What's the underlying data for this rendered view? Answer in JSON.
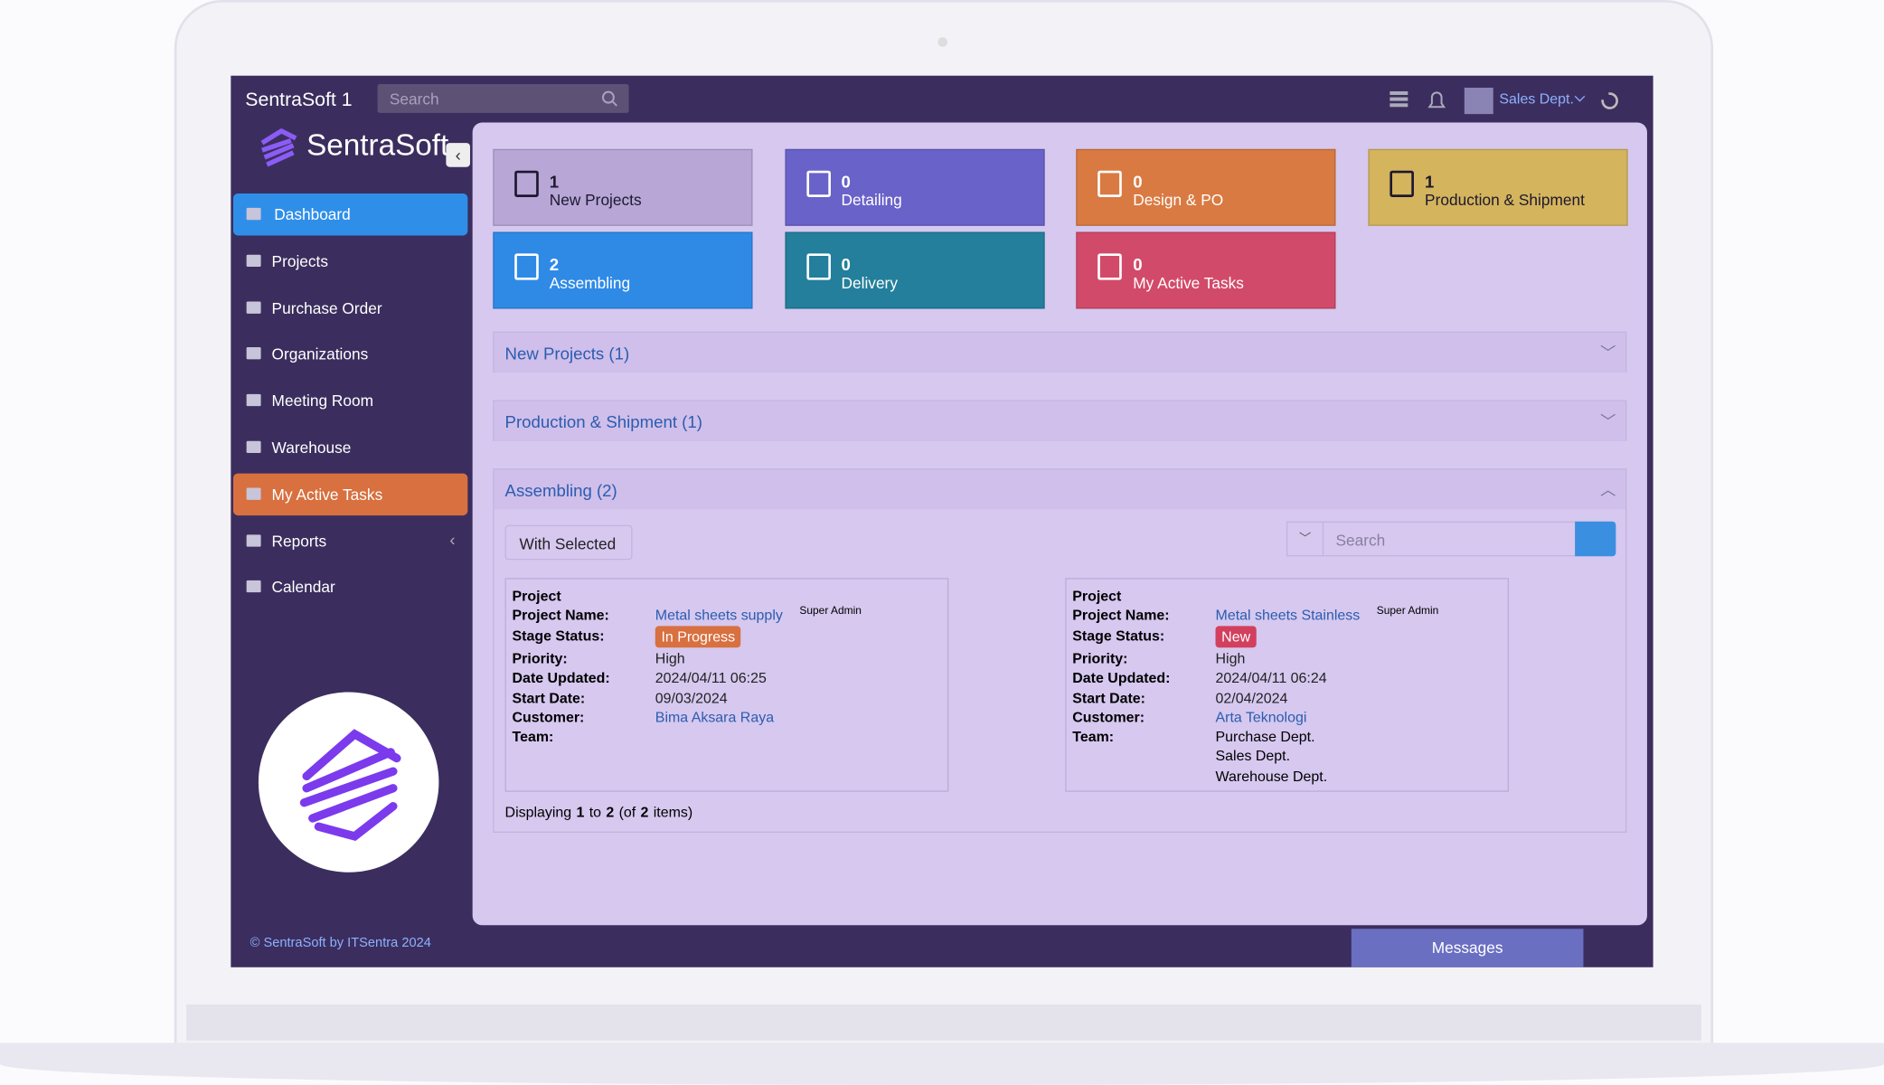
{
  "topbar": {
    "brand": "SentraSoft 1",
    "search_placeholder": "Search",
    "user": "Sales Dept."
  },
  "sidebar": {
    "logo": "SentraSoft",
    "menu": [
      "Dashboard",
      "Projects",
      "Purchase Order",
      "Organizations",
      "Meeting Room",
      "Warehouse",
      "My Active Tasks",
      "Reports",
      "Calendar"
    ],
    "footer": "© SentraSoft by ITSentra 2024"
  },
  "tiles": [
    {
      "count": "1",
      "label": "New Projects",
      "color": "#b7a6d6"
    },
    {
      "count": "0",
      "label": "Detailing",
      "color": "#6962c9"
    },
    {
      "count": "0",
      "label": "Design & PO",
      "color": "#d97a42"
    },
    {
      "count": "1",
      "label": "Production & Shipment",
      "color": "#d4b45c"
    },
    {
      "count": "2",
      "label": "Assembling",
      "color": "#2f8ae6"
    },
    {
      "count": "0",
      "label": "Delivery",
      "color": "#237f9b"
    },
    {
      "count": "0",
      "label": "My Active Tasks",
      "color": "#d24a69"
    }
  ],
  "panels": [
    "New Projects (1)",
    "Production & Shipment (1)",
    "Assembling (2)"
  ],
  "toolbar": {
    "with_selected": "With Selected",
    "search_placeholder": "Search"
  },
  "cards": [
    {
      "title": "Project",
      "name_label": "Project Name:",
      "name": "Metal sheets supply",
      "author": "Super Admin",
      "status_label": "Stage Status:",
      "status": "In Progress",
      "status_color": "#d8703f",
      "rows": [
        {
          "label": "Priority:",
          "value": "High"
        },
        {
          "label": "Date Updated:",
          "value": "2024/04/11 06:25"
        },
        {
          "label": "Start Date:",
          "value": "09/03/2024"
        },
        {
          "label": "Customer:",
          "value": "Bima Aksara Raya"
        }
      ],
      "team_label": "Team:",
      "team": []
    },
    {
      "title": "Project",
      "name_label": "Project Name:",
      "name": "Metal sheets Stainless",
      "author": "Super Admin",
      "status_label": "Stage Status:",
      "status": "New",
      "status_color": "#d2405e",
      "rows": [
        {
          "label": "Priority:",
          "value": "High"
        },
        {
          "label": "Date Updated:",
          "value": "2024/04/11 06:24"
        },
        {
          "label": "Start Date:",
          "value": "02/04/2024"
        },
        {
          "label": "Customer:",
          "value": "Arta Teknologi"
        }
      ],
      "team_label": "Team:",
      "team": [
        "Purchase Dept.",
        "Sales Dept.",
        "Warehouse Dept."
      ]
    }
  ],
  "pager": [
    "Displaying",
    "1",
    "to",
    "2",
    "(of",
    "2",
    "items)"
  ],
  "messages": "Messages"
}
